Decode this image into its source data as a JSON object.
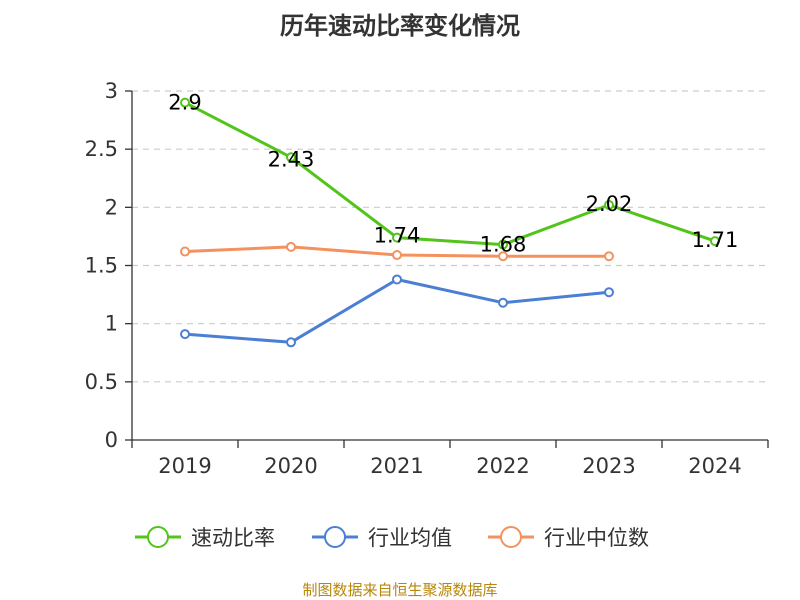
{
  "chart_data": {
    "type": "line",
    "title": "历年速动比率变化情况",
    "categories": [
      "2019",
      "2020",
      "2021",
      "2022",
      "2023",
      "2024"
    ],
    "ylim": [
      0,
      3
    ],
    "yticks": [
      "0",
      "0.5",
      "1",
      "1.5",
      "2",
      "2.5",
      "3"
    ],
    "ytick_values": [
      0,
      0.5,
      1,
      1.5,
      2,
      2.5,
      3
    ],
    "grid": true,
    "legend_position": "bottom-center",
    "series": [
      {
        "name": "速动比率",
        "color": "#52c41a",
        "values": [
          2.9,
          2.43,
          1.74,
          1.68,
          2.02,
          1.71
        ],
        "labels": [
          "2.9",
          "2.43",
          "1.74",
          "1.68",
          "2.02",
          "1.71"
        ],
        "show_labels": true
      },
      {
        "name": "行业均值",
        "color": "#4a7fd4",
        "values": [
          0.91,
          0.84,
          1.38,
          1.18,
          1.27,
          null
        ],
        "show_labels": false
      },
      {
        "name": "行业中位数",
        "color": "#f4925f",
        "values": [
          1.62,
          1.66,
          1.59,
          1.58,
          1.58,
          null
        ],
        "show_labels": false
      }
    ]
  },
  "source": "制图数据来自恒生聚源数据库"
}
